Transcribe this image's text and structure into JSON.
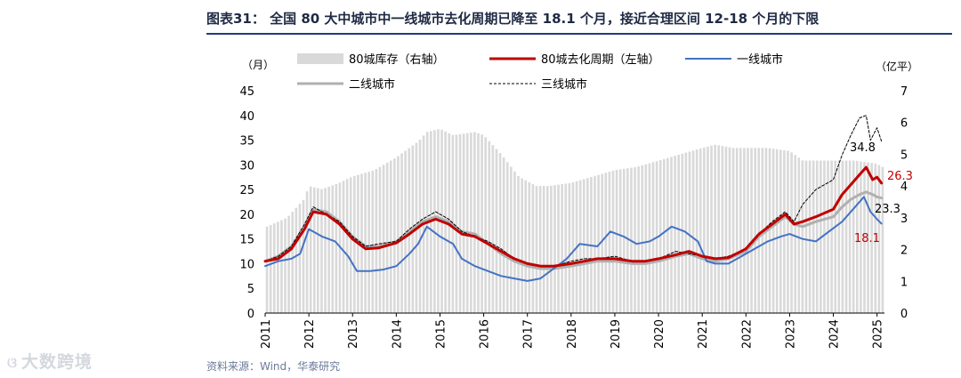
{
  "title": "图表31： 全国 80 大中城市中一线城市去化周期已降至 18.1 个月，接近合理区间 12-18 个月的下限",
  "source": "资料来源：Wind，华泰研究",
  "watermark": "大数跨境",
  "watermark_icon": "stacked-circles-logo",
  "chart_data": {
    "type": "bar+line",
    "left_axis": {
      "unit_label": "（月）",
      "range": [
        0,
        45
      ],
      "ticks": [
        0,
        5,
        10,
        15,
        20,
        25,
        30,
        35,
        40,
        45
      ]
    },
    "right_axis": {
      "unit_label": "（亿平）",
      "range": [
        0,
        7
      ],
      "ticks": [
        0,
        1,
        2,
        3,
        4,
        5,
        6,
        7
      ]
    },
    "x_axis": {
      "range": [
        2011.0,
        2025.17
      ],
      "ticks": [
        "2011",
        "2012",
        "2013",
        "2014",
        "2015",
        "2016",
        "2017",
        "2018",
        "2019",
        "2020",
        "2021",
        "2022",
        "2023",
        "2024",
        "2025"
      ]
    },
    "legend": [
      {
        "name": "80城库存（右轴）",
        "style": "bar",
        "color": "#d9d9d9"
      },
      {
        "name": "80城去化周期（左轴）",
        "style": "line",
        "color": "#c00000"
      },
      {
        "name": "一线城市",
        "style": "line",
        "color": "#4472c4"
      },
      {
        "name": "二线城市",
        "style": "line",
        "color": "#b0b0b0"
      },
      {
        "name": "三线城市",
        "style": "dashed",
        "color": "#000000"
      }
    ],
    "inventory_right_axis": [
      [
        2011.0,
        2.7
      ],
      [
        2011.5,
        3.0
      ],
      [
        2011.9,
        3.6
      ],
      [
        2012.0,
        4.0
      ],
      [
        2012.3,
        3.9
      ],
      [
        2012.7,
        4.1
      ],
      [
        2013.0,
        4.3
      ],
      [
        2013.5,
        4.5
      ],
      [
        2014.0,
        4.9
      ],
      [
        2014.5,
        5.4
      ],
      [
        2014.7,
        5.7
      ],
      [
        2015.0,
        5.8
      ],
      [
        2015.3,
        5.6
      ],
      [
        2015.8,
        5.7
      ],
      [
        2016.0,
        5.6
      ],
      [
        2016.4,
        5.0
      ],
      [
        2016.8,
        4.3
      ],
      [
        2017.2,
        4.0
      ],
      [
        2017.5,
        4.0
      ],
      [
        2018.0,
        4.1
      ],
      [
        2018.5,
        4.3
      ],
      [
        2019.0,
        4.5
      ],
      [
        2019.5,
        4.6
      ],
      [
        2020.0,
        4.8
      ],
      [
        2020.5,
        5.0
      ],
      [
        2021.0,
        5.2
      ],
      [
        2021.3,
        5.3
      ],
      [
        2021.7,
        5.2
      ],
      [
        2022.0,
        5.2
      ],
      [
        2022.5,
        5.2
      ],
      [
        2023.0,
        5.1
      ],
      [
        2023.3,
        4.8
      ],
      [
        2023.7,
        4.8
      ],
      [
        2024.0,
        4.8
      ],
      [
        2024.5,
        4.8
      ],
      [
        2025.0,
        4.7
      ],
      [
        2025.1,
        4.6
      ]
    ],
    "series": [
      {
        "name": "80城去化周期（左轴）",
        "points": [
          [
            2011.0,
            10.5
          ],
          [
            2011.3,
            11.0
          ],
          [
            2011.6,
            13.0
          ],
          [
            2011.9,
            17.0
          ],
          [
            2012.1,
            20.5
          ],
          [
            2012.4,
            20.0
          ],
          [
            2012.7,
            18.0
          ],
          [
            2013.0,
            15.0
          ],
          [
            2013.3,
            13.0
          ],
          [
            2013.6,
            13.2
          ],
          [
            2014.0,
            14.2
          ],
          [
            2014.3,
            16.0
          ],
          [
            2014.6,
            18.0
          ],
          [
            2014.9,
            19.0
          ],
          [
            2015.2,
            18.0
          ],
          [
            2015.5,
            16.0
          ],
          [
            2015.8,
            15.5
          ],
          [
            2016.1,
            14.0
          ],
          [
            2016.4,
            12.5
          ],
          [
            2016.7,
            11.0
          ],
          [
            2017.0,
            10.0
          ],
          [
            2017.3,
            9.5
          ],
          [
            2017.6,
            9.5
          ],
          [
            2018.0,
            10.0
          ],
          [
            2018.3,
            10.5
          ],
          [
            2018.6,
            11.0
          ],
          [
            2019.0,
            11.0
          ],
          [
            2019.4,
            10.5
          ],
          [
            2019.7,
            10.5
          ],
          [
            2020.0,
            11.0
          ],
          [
            2020.4,
            11.8
          ],
          [
            2020.7,
            12.5
          ],
          [
            2021.0,
            11.5
          ],
          [
            2021.3,
            11.0
          ],
          [
            2021.6,
            11.2
          ],
          [
            2022.0,
            13.0
          ],
          [
            2022.3,
            16.0
          ],
          [
            2022.6,
            18.0
          ],
          [
            2022.9,
            20.0
          ],
          [
            2023.1,
            18.0
          ],
          [
            2023.3,
            18.5
          ],
          [
            2023.6,
            19.5
          ],
          [
            2024.0,
            21.0
          ],
          [
            2024.2,
            24.0
          ],
          [
            2024.4,
            26.0
          ],
          [
            2024.6,
            28.0
          ],
          [
            2024.75,
            29.5
          ],
          [
            2024.9,
            27.0
          ],
          [
            2025.0,
            27.5
          ],
          [
            2025.1,
            26.3
          ]
        ]
      },
      {
        "name": "一线城市",
        "points": [
          [
            2011.0,
            9.5
          ],
          [
            2011.3,
            10.5
          ],
          [
            2011.6,
            11.0
          ],
          [
            2011.8,
            12.0
          ],
          [
            2012.0,
            17.0
          ],
          [
            2012.3,
            15.5
          ],
          [
            2012.6,
            14.5
          ],
          [
            2012.9,
            11.5
          ],
          [
            2013.1,
            8.5
          ],
          [
            2013.4,
            8.5
          ],
          [
            2013.7,
            8.8
          ],
          [
            2014.0,
            9.5
          ],
          [
            2014.3,
            12.0
          ],
          [
            2014.5,
            14.0
          ],
          [
            2014.7,
            17.5
          ],
          [
            2015.0,
            15.5
          ],
          [
            2015.3,
            14.0
          ],
          [
            2015.5,
            11.0
          ],
          [
            2015.8,
            9.5
          ],
          [
            2016.1,
            8.5
          ],
          [
            2016.4,
            7.5
          ],
          [
            2016.7,
            7.0
          ],
          [
            2017.0,
            6.5
          ],
          [
            2017.3,
            7.0
          ],
          [
            2017.6,
            9.0
          ],
          [
            2017.9,
            11.0
          ],
          [
            2018.2,
            14.0
          ],
          [
            2018.6,
            13.5
          ],
          [
            2018.9,
            16.5
          ],
          [
            2019.2,
            15.5
          ],
          [
            2019.5,
            14.0
          ],
          [
            2019.8,
            14.5
          ],
          [
            2020.0,
            15.5
          ],
          [
            2020.3,
            17.5
          ],
          [
            2020.6,
            16.5
          ],
          [
            2020.9,
            14.5
          ],
          [
            2021.1,
            10.5
          ],
          [
            2021.3,
            10.0
          ],
          [
            2021.6,
            10.0
          ],
          [
            2021.9,
            11.5
          ],
          [
            2022.2,
            13.0
          ],
          [
            2022.5,
            14.5
          ],
          [
            2022.8,
            15.5
          ],
          [
            2023.0,
            16.0
          ],
          [
            2023.3,
            15.0
          ],
          [
            2023.6,
            14.5
          ],
          [
            2023.9,
            16.5
          ],
          [
            2024.2,
            18.5
          ],
          [
            2024.5,
            21.5
          ],
          [
            2024.7,
            23.5
          ],
          [
            2024.85,
            20.5
          ],
          [
            2025.0,
            19.0
          ],
          [
            2025.1,
            18.1
          ]
        ]
      },
      {
        "name": "二线城市",
        "points": [
          [
            2011.0,
            10.5
          ],
          [
            2011.3,
            11.5
          ],
          [
            2011.6,
            13.5
          ],
          [
            2011.9,
            17.5
          ],
          [
            2012.1,
            21.0
          ],
          [
            2012.4,
            20.5
          ],
          [
            2012.7,
            18.5
          ],
          [
            2013.0,
            15.5
          ],
          [
            2013.3,
            13.5
          ],
          [
            2013.6,
            13.5
          ],
          [
            2014.0,
            14.5
          ],
          [
            2014.3,
            16.5
          ],
          [
            2014.6,
            18.5
          ],
          [
            2014.9,
            19.5
          ],
          [
            2015.2,
            18.5
          ],
          [
            2015.5,
            16.5
          ],
          [
            2015.8,
            16.0
          ],
          [
            2016.1,
            14.0
          ],
          [
            2016.4,
            12.0
          ],
          [
            2016.7,
            10.5
          ],
          [
            2017.0,
            9.5
          ],
          [
            2017.3,
            9.0
          ],
          [
            2017.6,
            9.0
          ],
          [
            2018.0,
            9.5
          ],
          [
            2018.3,
            10.0
          ],
          [
            2018.6,
            10.5
          ],
          [
            2019.0,
            10.5
          ],
          [
            2019.4,
            10.0
          ],
          [
            2019.7,
            10.0
          ],
          [
            2020.0,
            10.5
          ],
          [
            2020.4,
            11.5
          ],
          [
            2020.7,
            12.0
          ],
          [
            2021.0,
            11.0
          ],
          [
            2021.3,
            10.5
          ],
          [
            2021.6,
            11.0
          ],
          [
            2022.0,
            12.5
          ],
          [
            2022.3,
            15.5
          ],
          [
            2022.6,
            17.5
          ],
          [
            2022.9,
            19.5
          ],
          [
            2023.1,
            18.0
          ],
          [
            2023.3,
            17.5
          ],
          [
            2023.6,
            18.5
          ],
          [
            2024.0,
            19.5
          ],
          [
            2024.2,
            21.5
          ],
          [
            2024.4,
            23.0
          ],
          [
            2024.6,
            24.0
          ],
          [
            2024.75,
            24.5
          ],
          [
            2024.9,
            24.0
          ],
          [
            2025.0,
            23.5
          ],
          [
            2025.1,
            23.3
          ]
        ]
      },
      {
        "name": "三线城市",
        "points": [
          [
            2011.0,
            10.5
          ],
          [
            2011.3,
            11.5
          ],
          [
            2011.6,
            13.5
          ],
          [
            2011.9,
            18.0
          ],
          [
            2012.1,
            21.5
          ],
          [
            2012.4,
            20.0
          ],
          [
            2012.7,
            18.5
          ],
          [
            2013.0,
            15.5
          ],
          [
            2013.3,
            13.5
          ],
          [
            2013.6,
            14.0
          ],
          [
            2014.0,
            14.5
          ],
          [
            2014.3,
            17.0
          ],
          [
            2014.6,
            19.0
          ],
          [
            2014.9,
            20.5
          ],
          [
            2015.2,
            19.0
          ],
          [
            2015.5,
            16.5
          ],
          [
            2015.8,
            15.5
          ],
          [
            2016.1,
            14.5
          ],
          [
            2016.4,
            13.0
          ],
          [
            2016.7,
            11.0
          ],
          [
            2017.0,
            10.0
          ],
          [
            2017.3,
            9.5
          ],
          [
            2017.6,
            9.5
          ],
          [
            2018.0,
            10.5
          ],
          [
            2018.3,
            11.0
          ],
          [
            2018.6,
            11.0
          ],
          [
            2019.0,
            11.5
          ],
          [
            2019.4,
            10.5
          ],
          [
            2019.7,
            10.5
          ],
          [
            2020.0,
            11.0
          ],
          [
            2020.4,
            12.5
          ],
          [
            2020.7,
            12.0
          ],
          [
            2021.0,
            11.5
          ],
          [
            2021.3,
            11.0
          ],
          [
            2021.6,
            11.5
          ],
          [
            2022.0,
            13.0
          ],
          [
            2022.3,
            16.0
          ],
          [
            2022.6,
            18.5
          ],
          [
            2022.9,
            20.5
          ],
          [
            2023.1,
            18.5
          ],
          [
            2023.3,
            22.0
          ],
          [
            2023.6,
            25.0
          ],
          [
            2024.0,
            27.0
          ],
          [
            2024.2,
            32.0
          ],
          [
            2024.4,
            36.0
          ],
          [
            2024.6,
            39.5
          ],
          [
            2024.75,
            40.0
          ],
          [
            2024.85,
            35.0
          ],
          [
            2025.0,
            37.5
          ],
          [
            2025.1,
            34.8
          ]
        ]
      }
    ],
    "end_labels": [
      {
        "series": "三线城市",
        "text": "34.8",
        "color": "#000000"
      },
      {
        "series": "80城去化周期（左轴）",
        "text": "26.3",
        "color": "#c00000"
      },
      {
        "series": "二线城市",
        "text": "23.3",
        "color": "#000000"
      },
      {
        "series": "一线城市",
        "text": "18.1",
        "color": "#c00000"
      }
    ]
  }
}
